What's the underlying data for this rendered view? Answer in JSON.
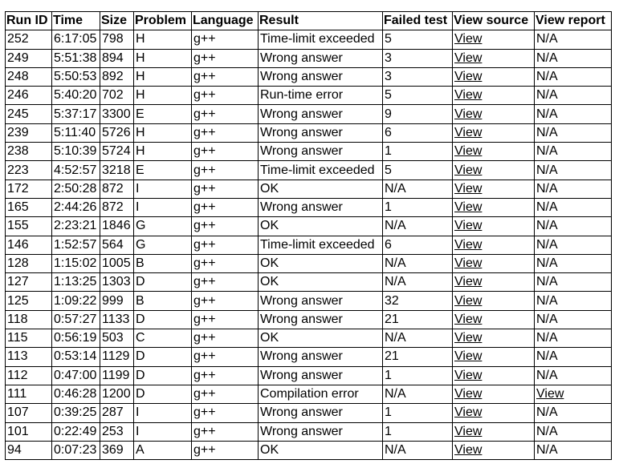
{
  "headers": [
    "Run ID",
    "Time",
    "Size",
    "Problem",
    "Language",
    "Result",
    "Failed test",
    "View source",
    "View report"
  ],
  "rows": [
    {
      "run_id": "252",
      "time": "6:17:05",
      "size": "798",
      "problem": "H",
      "language": "g++",
      "result": "Time-limit exceeded",
      "failed_test": "5",
      "view_source": "View",
      "view_report": "N/A"
    },
    {
      "run_id": "249",
      "time": "5:51:38",
      "size": "894",
      "problem": "H",
      "language": "g++",
      "result": "Wrong answer",
      "failed_test": "3",
      "view_source": "View",
      "view_report": "N/A"
    },
    {
      "run_id": "248",
      "time": "5:50:53",
      "size": "892",
      "problem": "H",
      "language": "g++",
      "result": "Wrong answer",
      "failed_test": "3",
      "view_source": "View",
      "view_report": "N/A"
    },
    {
      "run_id": "246",
      "time": "5:40:20",
      "size": "702",
      "problem": "H",
      "language": "g++",
      "result": "Run-time error",
      "failed_test": "5",
      "view_source": "View",
      "view_report": "N/A"
    },
    {
      "run_id": "245",
      "time": "5:37:17",
      "size": "3300",
      "problem": "E",
      "language": "g++",
      "result": "Wrong answer",
      "failed_test": "9",
      "view_source": "View",
      "view_report": "N/A"
    },
    {
      "run_id": "239",
      "time": "5:11:40",
      "size": "5726",
      "problem": "H",
      "language": "g++",
      "result": "Wrong answer",
      "failed_test": "6",
      "view_source": "View",
      "view_report": "N/A"
    },
    {
      "run_id": "238",
      "time": "5:10:39",
      "size": "5724",
      "problem": "H",
      "language": "g++",
      "result": "Wrong answer",
      "failed_test": "1",
      "view_source": "View",
      "view_report": "N/A"
    },
    {
      "run_id": "223",
      "time": "4:52:57",
      "size": "3218",
      "problem": "E",
      "language": "g++",
      "result": "Time-limit exceeded",
      "failed_test": "5",
      "view_source": "View",
      "view_report": "N/A"
    },
    {
      "run_id": "172",
      "time": "2:50:28",
      "size": "872",
      "problem": "I",
      "language": "g++",
      "result": "OK",
      "failed_test": "N/A",
      "view_source": "View",
      "view_report": "N/A"
    },
    {
      "run_id": "165",
      "time": "2:44:26",
      "size": "872",
      "problem": "I",
      "language": "g++",
      "result": "Wrong answer",
      "failed_test": "1",
      "view_source": "View",
      "view_report": "N/A"
    },
    {
      "run_id": "155",
      "time": "2:23:21",
      "size": "1846",
      "problem": "G",
      "language": "g++",
      "result": "OK",
      "failed_test": "N/A",
      "view_source": "View",
      "view_report": "N/A"
    },
    {
      "run_id": "146",
      "time": "1:52:57",
      "size": "564",
      "problem": "G",
      "language": "g++",
      "result": "Time-limit exceeded",
      "failed_test": "6",
      "view_source": "View",
      "view_report": "N/A"
    },
    {
      "run_id": "128",
      "time": "1:15:02",
      "size": "1005",
      "problem": "B",
      "language": "g++",
      "result": "OK",
      "failed_test": "N/A",
      "view_source": "View",
      "view_report": "N/A"
    },
    {
      "run_id": "127",
      "time": "1:13:25",
      "size": "1303",
      "problem": "D",
      "language": "g++",
      "result": "OK",
      "failed_test": "N/A",
      "view_source": "View",
      "view_report": "N/A"
    },
    {
      "run_id": "125",
      "time": "1:09:22",
      "size": "999",
      "problem": "B",
      "language": "g++",
      "result": "Wrong answer",
      "failed_test": "32",
      "view_source": "View",
      "view_report": "N/A"
    },
    {
      "run_id": "118",
      "time": "0:57:27",
      "size": "1133",
      "problem": "D",
      "language": "g++",
      "result": "Wrong answer",
      "failed_test": "21",
      "view_source": "View",
      "view_report": "N/A"
    },
    {
      "run_id": "115",
      "time": "0:56:19",
      "size": "503",
      "problem": "C",
      "language": "g++",
      "result": "OK",
      "failed_test": "N/A",
      "view_source": "View",
      "view_report": "N/A"
    },
    {
      "run_id": "113",
      "time": "0:53:14",
      "size": "1129",
      "problem": "D",
      "language": "g++",
      "result": "Wrong answer",
      "failed_test": "21",
      "view_source": "View",
      "view_report": "N/A"
    },
    {
      "run_id": "112",
      "time": "0:47:00",
      "size": "1199",
      "problem": "D",
      "language": "g++",
      "result": "Wrong answer",
      "failed_test": "1",
      "view_source": "View",
      "view_report": "N/A"
    },
    {
      "run_id": "111",
      "time": "0:46:28",
      "size": "1200",
      "problem": "D",
      "language": "g++",
      "result": "Compilation error",
      "failed_test": "N/A",
      "view_source": "View",
      "view_report": "View",
      "report_link": true
    },
    {
      "run_id": "107",
      "time": "0:39:25",
      "size": "287",
      "problem": "I",
      "language": "g++",
      "result": "Wrong answer",
      "failed_test": "1",
      "view_source": "View",
      "view_report": "N/A"
    },
    {
      "run_id": "101",
      "time": "0:22:49",
      "size": "253",
      "problem": "I",
      "language": "g++",
      "result": "Wrong answer",
      "failed_test": "1",
      "view_source": "View",
      "view_report": "N/A"
    },
    {
      "run_id": "94",
      "time": "0:07:23",
      "size": "369",
      "problem": "A",
      "language": "g++",
      "result": "OK",
      "failed_test": "N/A",
      "view_source": "View",
      "view_report": "N/A"
    }
  ]
}
